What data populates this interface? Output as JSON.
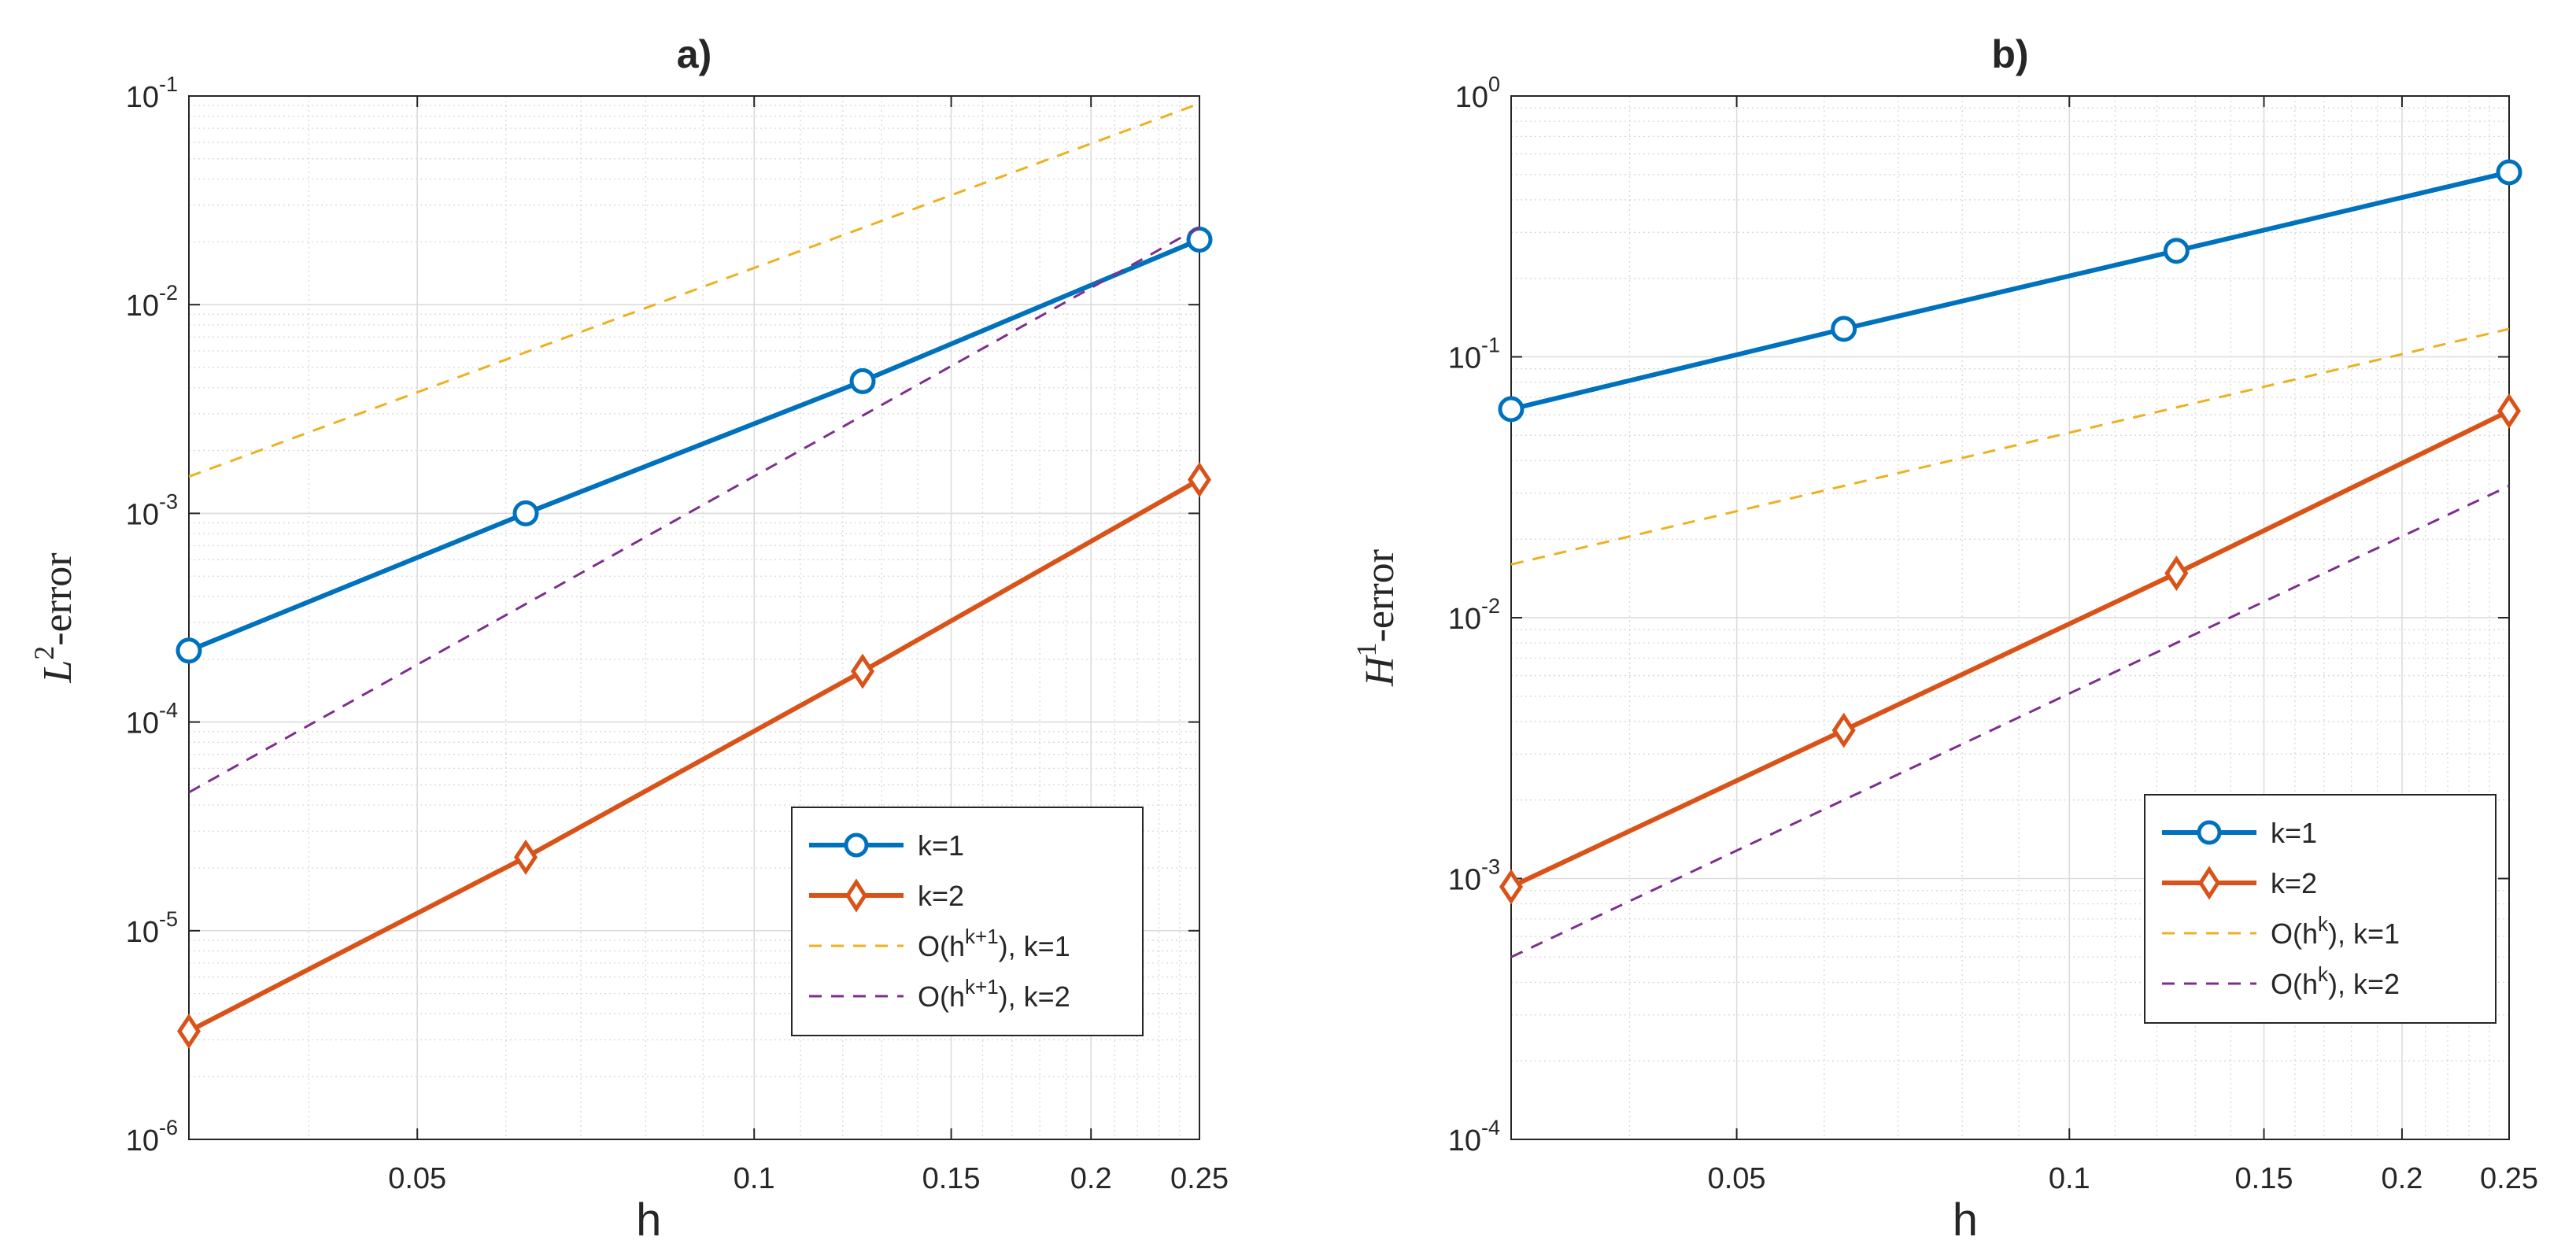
{
  "chart_data": [
    {
      "type": "line",
      "title": "a)",
      "xlabel": "h",
      "ylabel": {
        "base": "L",
        "sup": "2",
        "rest": "-error"
      },
      "xscale": "log",
      "yscale": "log",
      "xlim": [
        0.03125,
        0.25
      ],
      "ylim": [
        1e-06,
        0.1
      ],
      "xticks": [
        {
          "value": 0.05,
          "label": "0.05"
        },
        {
          "value": 0.1,
          "label": "0.1"
        },
        {
          "value": 0.15,
          "label": "0.15"
        },
        {
          "value": 0.2,
          "label": "0.2"
        },
        {
          "value": 0.25,
          "label": "0.25"
        }
      ],
      "yticks": [
        {
          "value": 1e-06,
          "base": "10",
          "exp": "-6"
        },
        {
          "value": 1e-05,
          "base": "10",
          "exp": "-5"
        },
        {
          "value": 0.0001,
          "base": "10",
          "exp": "-4"
        },
        {
          "value": 0.001,
          "base": "10",
          "exp": "-3"
        },
        {
          "value": 0.01,
          "base": "10",
          "exp": "-2"
        },
        {
          "value": 0.1,
          "base": "10",
          "exp": "-1"
        }
      ],
      "grid": true,
      "minor_grid": true,
      "legend_position": "bottom-right",
      "series": [
        {
          "name": "k=1",
          "color": "#0072BD",
          "style": "solid",
          "marker": "circle",
          "x": [
            0.03125,
            0.0625,
            0.125,
            0.25
          ],
          "y": [
            0.00022,
            0.001,
            0.0043,
            0.0205
          ],
          "legend": {
            "pre": "k=1",
            "sup": "",
            "post": ""
          }
        },
        {
          "name": "k=2",
          "color": "#D95319",
          "style": "solid",
          "marker": "diamond",
          "x": [
            0.03125,
            0.0625,
            0.125,
            0.25
          ],
          "y": [
            3.3e-06,
            2.25e-05,
            0.000175,
            0.00145
          ],
          "legend": {
            "pre": "k=2",
            "sup": "",
            "post": ""
          }
        },
        {
          "name": "O(h^{k+1}), k=1",
          "color": "#EDB120",
          "style": "dashed",
          "marker": "none",
          "x": [
            0.03125,
            0.25
          ],
          "y": [
            0.0015,
            0.092
          ],
          "legend": {
            "pre": "O(h",
            "sup": "k+1",
            "post": "), k=1"
          }
        },
        {
          "name": "O(h^{k+1}), k=2",
          "color": "#7E2F8E",
          "style": "dashed",
          "marker": "none",
          "x": [
            0.03125,
            0.25
          ],
          "y": [
            4.6e-05,
            0.0235
          ],
          "legend": {
            "pre": "O(h",
            "sup": "k+1",
            "post": "), k=2"
          }
        }
      ]
    },
    {
      "type": "line",
      "title": "b)",
      "xlabel": "h",
      "ylabel": {
        "base": "H",
        "sup": "1",
        "rest": "-error"
      },
      "xscale": "log",
      "yscale": "log",
      "xlim": [
        0.03125,
        0.25
      ],
      "ylim": [
        0.0001,
        1
      ],
      "xticks": [
        {
          "value": 0.05,
          "label": "0.05"
        },
        {
          "value": 0.1,
          "label": "0.1"
        },
        {
          "value": 0.15,
          "label": "0.15"
        },
        {
          "value": 0.2,
          "label": "0.2"
        },
        {
          "value": 0.25,
          "label": "0.25"
        }
      ],
      "yticks": [
        {
          "value": 0.0001,
          "base": "10",
          "exp": "-4"
        },
        {
          "value": 0.001,
          "base": "10",
          "exp": "-3"
        },
        {
          "value": 0.01,
          "base": "10",
          "exp": "-2"
        },
        {
          "value": 0.1,
          "base": "10",
          "exp": "-1"
        },
        {
          "value": 1,
          "base": "10",
          "exp": "0"
        }
      ],
      "grid": true,
      "minor_grid": true,
      "legend_position": "bottom-right",
      "series": [
        {
          "name": "k=1",
          "color": "#0072BD",
          "style": "solid",
          "marker": "circle",
          "x": [
            0.03125,
            0.0625,
            0.125,
            0.25
          ],
          "y": [
            0.063,
            0.128,
            0.255,
            0.51
          ],
          "legend": {
            "pre": "k=1",
            "sup": "",
            "post": ""
          }
        },
        {
          "name": "k=2",
          "color": "#D95319",
          "style": "solid",
          "marker": "diamond",
          "x": [
            0.03125,
            0.0625,
            0.125,
            0.25
          ],
          "y": [
            0.00093,
            0.0037,
            0.0148,
            0.062
          ],
          "legend": {
            "pre": "k=2",
            "sup": "",
            "post": ""
          }
        },
        {
          "name": "O(h^k), k=1",
          "color": "#EDB120",
          "style": "dashed",
          "marker": "none",
          "x": [
            0.03125,
            0.25
          ],
          "y": [
            0.016,
            0.128
          ],
          "legend": {
            "pre": "O(h",
            "sup": "k",
            "post": "), k=1"
          }
        },
        {
          "name": "O(h^k), k=2",
          "color": "#7E2F8E",
          "style": "dashed",
          "marker": "none",
          "x": [
            0.03125,
            0.25
          ],
          "y": [
            0.0005,
            0.032
          ],
          "legend": {
            "pre": "O(h",
            "sup": "k",
            "post": "), k=2"
          }
        }
      ]
    }
  ]
}
